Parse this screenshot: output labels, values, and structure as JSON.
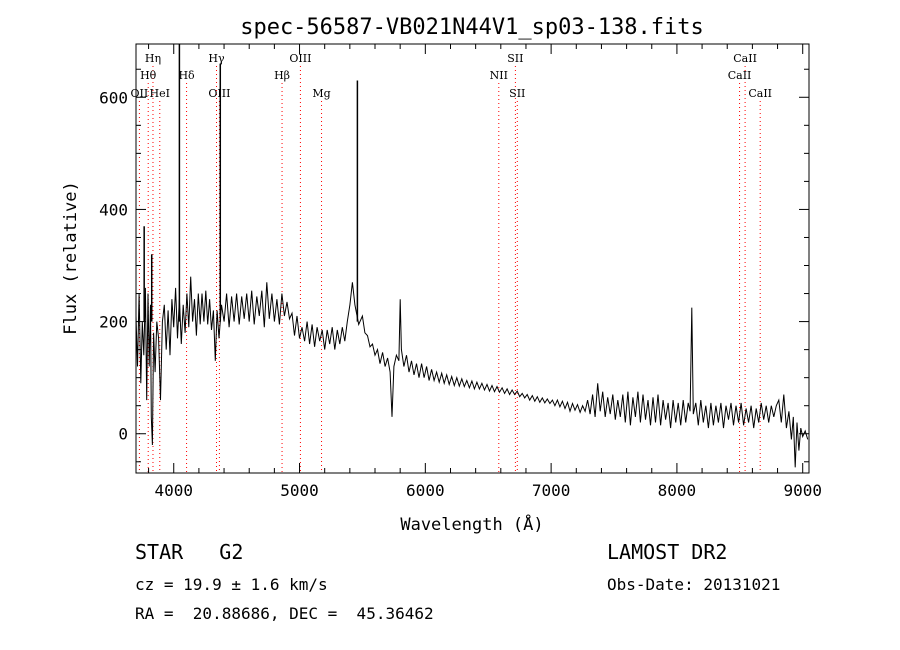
{
  "chart_data": {
    "type": "line",
    "title": "spec-56587-VB021N44V1_sp03-138.fits",
    "xlabel": "Wavelength (Å)",
    "ylabel": "Flux (relative)",
    "xlim": [
      3700,
      9050
    ],
    "ylim": [
      -70,
      695
    ],
    "xticks": [
      4000,
      5000,
      6000,
      7000,
      8000,
      9000
    ],
    "yticks": [
      0,
      200,
      400,
      600
    ],
    "grid": false,
    "line_color": "#000000",
    "marker_color": "#ff0000",
    "spectrum": [
      [
        3700,
        210
      ],
      [
        3712,
        120
      ],
      [
        3725,
        250
      ],
      [
        3738,
        90
      ],
      [
        3750,
        200
      ],
      [
        3762,
        140
      ],
      [
        3775,
        260
      ],
      [
        3785,
        60
      ],
      [
        3795,
        250
      ],
      [
        3805,
        120
      ],
      [
        3815,
        230
      ],
      [
        3822,
        30
      ],
      [
        3830,
        -20
      ],
      [
        3840,
        180
      ],
      [
        3852,
        110
      ],
      [
        3865,
        200
      ],
      [
        3880,
        170
      ],
      [
        3895,
        60
      ],
      [
        3910,
        200
      ],
      [
        3925,
        230
      ],
      [
        3940,
        150
      ],
      [
        3955,
        220
      ],
      [
        3970,
        140
      ],
      [
        3985,
        240
      ],
      [
        4000,
        190
      ],
      [
        4015,
        260
      ],
      [
        4030,
        170
      ],
      [
        4045,
        240
      ],
      [
        4060,
        160
      ],
      [
        4075,
        230
      ],
      [
        4090,
        180
      ],
      [
        4105,
        250
      ],
      [
        4120,
        190
      ],
      [
        4135,
        280
      ],
      [
        4150,
        200
      ],
      [
        4165,
        240
      ],
      [
        4180,
        175
      ],
      [
        4195,
        250
      ],
      [
        4210,
        195
      ],
      [
        4225,
        250
      ],
      [
        4240,
        200
      ],
      [
        4255,
        255
      ],
      [
        4270,
        195
      ],
      [
        4285,
        240
      ],
      [
        4300,
        185
      ],
      [
        4315,
        220
      ],
      [
        4330,
        130
      ],
      [
        4345,
        220
      ],
      [
        4360,
        170
      ],
      [
        4380,
        230
      ],
      [
        4400,
        200
      ],
      [
        4420,
        250
      ],
      [
        4440,
        190
      ],
      [
        4460,
        245
      ],
      [
        4480,
        200
      ],
      [
        4500,
        250
      ],
      [
        4520,
        195
      ],
      [
        4540,
        245
      ],
      [
        4560,
        205
      ],
      [
        4580,
        250
      ],
      [
        4600,
        200
      ],
      [
        4620,
        255
      ],
      [
        4640,
        195
      ],
      [
        4660,
        245
      ],
      [
        4680,
        210
      ],
      [
        4700,
        255
      ],
      [
        4720,
        190
      ],
      [
        4740,
        270
      ],
      [
        4760,
        205
      ],
      [
        4780,
        250
      ],
      [
        4800,
        200
      ],
      [
        4820,
        240
      ],
      [
        4840,
        195
      ],
      [
        4860,
        250
      ],
      [
        4880,
        210
      ],
      [
        4900,
        235
      ],
      [
        4920,
        205
      ],
      [
        4940,
        215
      ],
      [
        4960,
        175
      ],
      [
        4980,
        210
      ],
      [
        5000,
        170
      ],
      [
        5020,
        190
      ],
      [
        5040,
        165
      ],
      [
        5060,
        200
      ],
      [
        5080,
        160
      ],
      [
        5100,
        195
      ],
      [
        5120,
        155
      ],
      [
        5140,
        190
      ],
      [
        5160,
        165
      ],
      [
        5180,
        185
      ],
      [
        5200,
        150
      ],
      [
        5220,
        185
      ],
      [
        5240,
        160
      ],
      [
        5260,
        190
      ],
      [
        5280,
        150
      ],
      [
        5300,
        185
      ],
      [
        5320,
        160
      ],
      [
        5340,
        190
      ],
      [
        5360,
        165
      ],
      [
        5380,
        200
      ],
      [
        5400,
        230
      ],
      [
        5420,
        270
      ],
      [
        5440,
        230
      ],
      [
        5470,
        195
      ],
      [
        5500,
        210
      ],
      [
        5520,
        180
      ],
      [
        5540,
        175
      ],
      [
        5560,
        155
      ],
      [
        5580,
        160
      ],
      [
        5600,
        140
      ],
      [
        5620,
        150
      ],
      [
        5640,
        125
      ],
      [
        5660,
        145
      ],
      [
        5680,
        120
      ],
      [
        5700,
        135
      ],
      [
        5720,
        110
      ],
      [
        5735,
        30
      ],
      [
        5750,
        120
      ],
      [
        5770,
        140
      ],
      [
        5790,
        130
      ],
      [
        5800,
        240
      ],
      [
        5810,
        150
      ],
      [
        5830,
        120
      ],
      [
        5850,
        140
      ],
      [
        5870,
        110
      ],
      [
        5890,
        130
      ],
      [
        5910,
        105
      ],
      [
        5930,
        125
      ],
      [
        5950,
        100
      ],
      [
        5970,
        125
      ],
      [
        5990,
        100
      ],
      [
        6010,
        120
      ],
      [
        6030,
        95
      ],
      [
        6050,
        115
      ],
      [
        6070,
        95
      ],
      [
        6090,
        110
      ],
      [
        6110,
        92
      ],
      [
        6130,
        108
      ],
      [
        6150,
        90
      ],
      [
        6170,
        105
      ],
      [
        6190,
        88
      ],
      [
        6210,
        102
      ],
      [
        6230,
        86
      ],
      [
        6250,
        100
      ],
      [
        6270,
        85
      ],
      [
        6290,
        98
      ],
      [
        6310,
        84
      ],
      [
        6330,
        95
      ],
      [
        6350,
        82
      ],
      [
        6370,
        94
      ],
      [
        6390,
        80
      ],
      [
        6410,
        92
      ],
      [
        6430,
        80
      ],
      [
        6450,
        90
      ],
      [
        6470,
        78
      ],
      [
        6490,
        88
      ],
      [
        6510,
        76
      ],
      [
        6530,
        86
      ],
      [
        6550,
        75
      ],
      [
        6570,
        84
      ],
      [
        6590,
        74
      ],
      [
        6610,
        82
      ],
      [
        6630,
        72
      ],
      [
        6650,
        80
      ],
      [
        6670,
        70
      ],
      [
        6690,
        78
      ],
      [
        6710,
        70
      ],
      [
        6730,
        76
      ],
      [
        6750,
        66
      ],
      [
        6770,
        72
      ],
      [
        6790,
        64
      ],
      [
        6810,
        70
      ],
      [
        6830,
        60
      ],
      [
        6850,
        68
      ],
      [
        6870,
        58
      ],
      [
        6890,
        66
      ],
      [
        6910,
        56
      ],
      [
        6930,
        64
      ],
      [
        6950,
        55
      ],
      [
        6970,
        62
      ],
      [
        6990,
        54
      ],
      [
        7010,
        60
      ],
      [
        7030,
        50
      ],
      [
        7050,
        60
      ],
      [
        7070,
        48
      ],
      [
        7090,
        58
      ],
      [
        7110,
        45
      ],
      [
        7130,
        56
      ],
      [
        7150,
        40
      ],
      [
        7170,
        54
      ],
      [
        7190,
        42
      ],
      [
        7210,
        52
      ],
      [
        7230,
        38
      ],
      [
        7250,
        50
      ],
      [
        7270,
        40
      ],
      [
        7290,
        60
      ],
      [
        7310,
        35
      ],
      [
        7330,
        70
      ],
      [
        7350,
        30
      ],
      [
        7370,
        90
      ],
      [
        7390,
        40
      ],
      [
        7410,
        75
      ],
      [
        7430,
        30
      ],
      [
        7450,
        65
      ],
      [
        7470,
        35
      ],
      [
        7490,
        70
      ],
      [
        7510,
        25
      ],
      [
        7530,
        60
      ],
      [
        7550,
        30
      ],
      [
        7570,
        70
      ],
      [
        7590,
        20
      ],
      [
        7610,
        75
      ],
      [
        7630,
        15
      ],
      [
        7650,
        65
      ],
      [
        7670,
        30
      ],
      [
        7690,
        75
      ],
      [
        7710,
        20
      ],
      [
        7730,
        70
      ],
      [
        7750,
        25
      ],
      [
        7770,
        60
      ],
      [
        7790,
        15
      ],
      [
        7810,
        65
      ],
      [
        7830,
        20
      ],
      [
        7850,
        70
      ],
      [
        7870,
        15
      ],
      [
        7890,
        60
      ],
      [
        7910,
        25
      ],
      [
        7930,
        55
      ],
      [
        7950,
        10
      ],
      [
        7970,
        60
      ],
      [
        7990,
        20
      ],
      [
        8010,
        55
      ],
      [
        8030,
        15
      ],
      [
        8050,
        60
      ],
      [
        8070,
        20
      ],
      [
        8090,
        55
      ],
      [
        8105,
        40
      ],
      [
        8118,
        225
      ],
      [
        8130,
        35
      ],
      [
        8150,
        55
      ],
      [
        8170,
        15
      ],
      [
        8190,
        60
      ],
      [
        8210,
        20
      ],
      [
        8230,
        50
      ],
      [
        8250,
        10
      ],
      [
        8270,
        55
      ],
      [
        8290,
        15
      ],
      [
        8310,
        50
      ],
      [
        8330,
        20
      ],
      [
        8350,
        55
      ],
      [
        8370,
        10
      ],
      [
        8390,
        50
      ],
      [
        8410,
        25
      ],
      [
        8430,
        55
      ],
      [
        8450,
        15
      ],
      [
        8470,
        50
      ],
      [
        8490,
        20
      ],
      [
        8510,
        55
      ],
      [
        8530,
        15
      ],
      [
        8550,
        45
      ],
      [
        8570,
        20
      ],
      [
        8590,
        50
      ],
      [
        8610,
        10
      ],
      [
        8630,
        45
      ],
      [
        8650,
        20
      ],
      [
        8670,
        55
      ],
      [
        8690,
        25
      ],
      [
        8710,
        50
      ],
      [
        8730,
        20
      ],
      [
        8750,
        50
      ],
      [
        8770,
        30
      ],
      [
        8790,
        50
      ],
      [
        8810,
        60
      ],
      [
        8830,
        20
      ],
      [
        8850,
        70
      ],
      [
        8870,
        10
      ],
      [
        8890,
        40
      ],
      [
        8910,
        -10
      ],
      [
        8925,
        30
      ],
      [
        8940,
        -60
      ],
      [
        8955,
        20
      ],
      [
        8970,
        -30
      ],
      [
        8985,
        10
      ],
      [
        9000,
        -5
      ],
      [
        9020,
        5
      ],
      [
        9040,
        -10
      ]
    ],
    "sharp_lines": [
      [
        3765,
        370
      ],
      [
        3825,
        320
      ],
      [
        4045,
        750
      ],
      [
        4370,
        660
      ],
      [
        5460,
        630
      ]
    ],
    "line_markers": [
      {
        "label": "Hη",
        "wavelength": 3835,
        "row": 0
      },
      {
        "label": "Hθ",
        "wavelength": 3797,
        "row": 1
      },
      {
        "label": "OII",
        "wavelength": 3727,
        "row": 2
      },
      {
        "label": "HeI",
        "wavelength": 3889,
        "row": 2
      },
      {
        "label": "Hδ",
        "wavelength": 4102,
        "row": 1
      },
      {
        "label": "Hγ",
        "wavelength": 4340,
        "row": 0
      },
      {
        "label": "OIII",
        "wavelength": 4363,
        "row": 2
      },
      {
        "label": "Hβ",
        "wavelength": 4861,
        "row": 1
      },
      {
        "label": "OIII",
        "wavelength": 5007,
        "row": 0
      },
      {
        "label": "Mg",
        "wavelength": 5175,
        "row": 2
      },
      {
        "label": "SII",
        "wavelength": 6716,
        "row": 0
      },
      {
        "label": "NII",
        "wavelength": 6584,
        "row": 1
      },
      {
        "label": "SII",
        "wavelength": 6731,
        "row": 2
      },
      {
        "label": "CaII",
        "wavelength": 8542,
        "row": 0
      },
      {
        "label": "CaII",
        "wavelength": 8498,
        "row": 1
      },
      {
        "label": "CaII",
        "wavelength": 8662,
        "row": 2
      }
    ]
  },
  "info": {
    "class_line": "STAR   G2",
    "survey": "LAMOST DR2",
    "cz": "cz = 19.9 ± 1.6 km/s",
    "obs_date": "Obs-Date: 20131021",
    "radec": "RA =  20.88686, DEC =  45.36462"
  }
}
